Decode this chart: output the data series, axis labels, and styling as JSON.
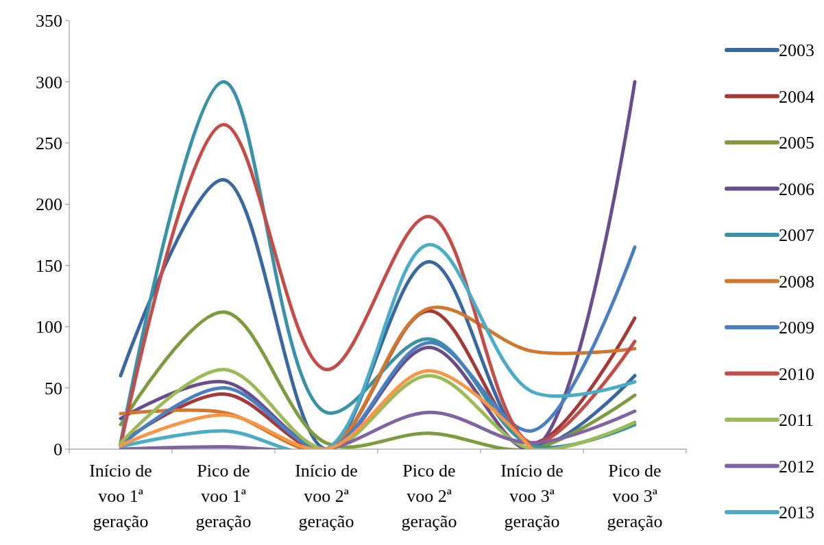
{
  "chart_data": {
    "type": "line",
    "categories": [
      "Início de voo 1ª geração",
      "Pico de voo 1ª geração",
      "Início de voo 2ª geração",
      "Pico de voo 2ª geração",
      "Início de voo 3ª geração",
      "Pico de voo 3ª geração"
    ],
    "ylim": [
      0,
      350
    ],
    "yticks": [
      0,
      50,
      100,
      150,
      200,
      250,
      300,
      350
    ],
    "grid": false,
    "legend": "right",
    "marker": "none",
    "line_style": "solid",
    "series": [
      {
        "name": "2003",
        "color": "#3a679f",
        "values": [
          60,
          220,
          0,
          153,
          3,
          60
        ]
      },
      {
        "name": "2004",
        "color": "#a33a38",
        "values": [
          5,
          45,
          0,
          113,
          5,
          107
        ]
      },
      {
        "name": "2005",
        "color": "#7e9c3f",
        "values": [
          20,
          112,
          5,
          13,
          0,
          44
        ]
      },
      {
        "name": "2006",
        "color": "#694d8c",
        "values": [
          25,
          55,
          0,
          83,
          0,
          300
        ]
      },
      {
        "name": "2007",
        "color": "#3a92a7",
        "values": [
          5,
          300,
          30,
          90,
          3,
          20
        ]
      },
      {
        "name": "2008",
        "color": "#d0782f",
        "values": [
          29,
          30,
          0,
          115,
          80,
          82
        ]
      },
      {
        "name": "2009",
        "color": "#4a7fc1",
        "values": [
          3,
          50,
          0,
          87,
          15,
          165
        ]
      },
      {
        "name": "2010",
        "color": "#c44d4a",
        "values": [
          3,
          265,
          65,
          190,
          5,
          88
        ]
      },
      {
        "name": "2011",
        "color": "#9bbb59",
        "values": [
          5,
          65,
          0,
          60,
          0,
          22
        ]
      },
      {
        "name": "2012",
        "color": "#8064a2",
        "values": [
          0,
          2,
          0,
          30,
          5,
          31
        ]
      },
      {
        "name": "2013",
        "color": "#4bacc6",
        "values": [
          2,
          15,
          0,
          167,
          47,
          55
        ]
      },
      {
        "color": "#f79646",
        "values": [
          3,
          28,
          0,
          64,
          0,
          null
        ]
      }
    ]
  }
}
